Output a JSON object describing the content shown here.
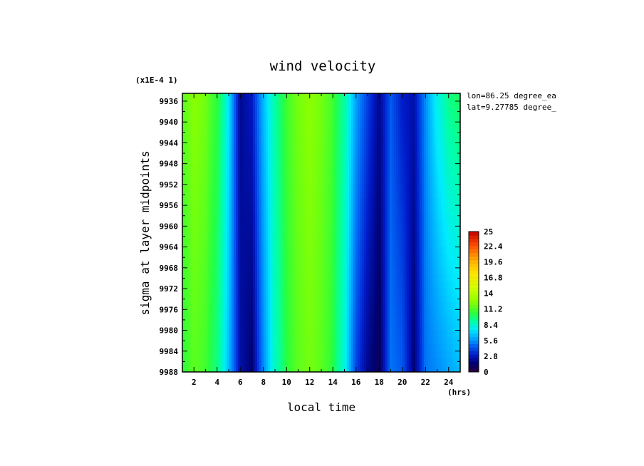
{
  "chart_data": {
    "type": "heatmap",
    "title": "wind velocity",
    "xlabel": "local time",
    "x_units": "(hrs)",
    "ylabel": "sigma at layer midpoints",
    "y_scale_note": "(x1E-4 1)",
    "annotations": [
      "lon=86.25 degree_ea",
      "lat=9.27785 degree_"
    ],
    "xlim": [
      1,
      25
    ],
    "ylim": [
      9934.5,
      9988
    ],
    "x_ticks": [
      "2",
      "4",
      "6",
      "8",
      "10",
      "12",
      "14",
      "16",
      "18",
      "20",
      "22",
      "24"
    ],
    "y_ticks": [
      "9936",
      "9940",
      "9944",
      "9948",
      "9952",
      "9956",
      "9960",
      "9964",
      "9968",
      "9972",
      "9976",
      "9980",
      "9984",
      "9988"
    ],
    "x": [
      1,
      2,
      3,
      4,
      5,
      6,
      7,
      8,
      9,
      10,
      11,
      12,
      13,
      14,
      15,
      16,
      17,
      18,
      19,
      20,
      21,
      22,
      23,
      24,
      25
    ],
    "y": [
      9934.5,
      9988
    ],
    "z": [
      [
        11.5,
        12.5,
        12.0,
        10.5,
        7.5,
        2.0,
        3.0,
        6.5,
        9.0,
        11.0,
        12.0,
        12.5,
        12.0,
        11.0,
        9.0,
        6.0,
        4.0,
        2.0,
        4.5,
        3.0,
        2.5,
        5.5,
        8.0,
        9.5,
        10.0
      ],
      [
        10.5,
        11.5,
        11.0,
        9.5,
        6.5,
        2.5,
        1.5,
        5.5,
        8.5,
        10.5,
        11.5,
        12.0,
        11.5,
        10.5,
        8.0,
        4.0,
        2.0,
        1.0,
        5.0,
        4.5,
        1.5,
        5.0,
        5.5,
        6.0,
        6.5
      ]
    ],
    "colorbar": {
      "min": 0,
      "max": 25,
      "ticks": [
        "0",
        "2.8",
        "5.6",
        "8.4",
        "11.2",
        "14",
        "16.8",
        "19.6",
        "22.4",
        "25"
      ]
    }
  }
}
